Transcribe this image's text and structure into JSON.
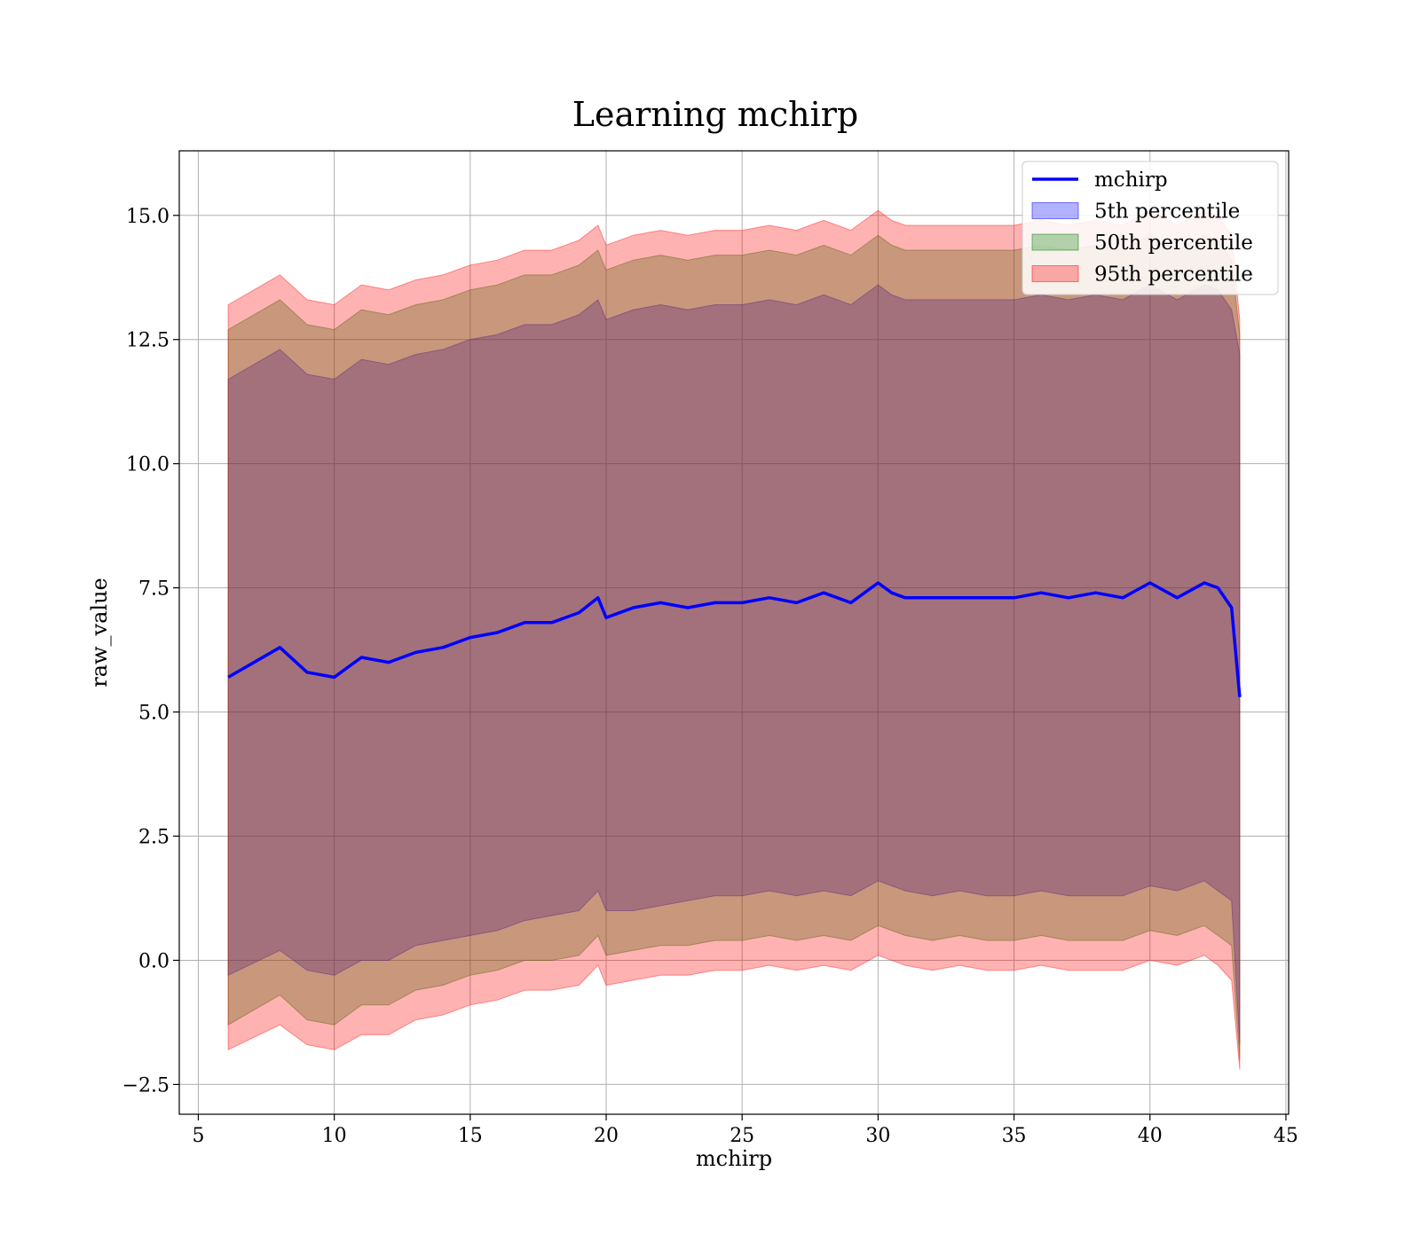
{
  "chart_data": {
    "type": "area",
    "title": "Learning mchirp",
    "xlabel": "mchirp",
    "ylabel": "raw_value",
    "xlim": [
      4.3,
      45.1
    ],
    "ylim": [
      -3.1,
      16.3
    ],
    "xticks": [
      5,
      10,
      15,
      20,
      25,
      30,
      35,
      40,
      45
    ],
    "xtick_labels": [
      "5",
      "10",
      "15",
      "20",
      "25",
      "30",
      "35",
      "40",
      "45"
    ],
    "yticks": [
      -2.5,
      0.0,
      2.5,
      5.0,
      7.5,
      10.0,
      12.5,
      15.0
    ],
    "ytick_labels": [
      "−2.5",
      "0.0",
      "2.5",
      "5.0",
      "7.5",
      "10.0",
      "12.5",
      "15.0"
    ],
    "grid": true,
    "legend_position": "top-right",
    "x": [
      6.1,
      8.0,
      9.0,
      10.0,
      11.0,
      12.0,
      13.0,
      14.0,
      15.0,
      16.0,
      17.0,
      18.0,
      19.0,
      19.7,
      20.0,
      21.0,
      22.0,
      23.0,
      24.0,
      25.0,
      26.0,
      27.0,
      28.0,
      29.0,
      30.0,
      30.5,
      31.0,
      32.0,
      33.0,
      34.0,
      35.0,
      36.0,
      37.0,
      38.0,
      39.0,
      40.0,
      41.0,
      42.0,
      42.5,
      43.0,
      43.3
    ],
    "series": [
      {
        "name": "mchirp",
        "style": "line",
        "color": "#0000ff",
        "values": [
          5.7,
          6.3,
          5.8,
          5.7,
          6.1,
          6.0,
          6.2,
          6.3,
          6.5,
          6.6,
          6.8,
          6.8,
          7.0,
          7.3,
          6.9,
          7.1,
          7.2,
          7.1,
          7.2,
          7.2,
          7.3,
          7.2,
          7.4,
          7.2,
          7.6,
          7.4,
          7.3,
          7.3,
          7.3,
          7.3,
          7.3,
          7.4,
          7.3,
          7.4,
          7.3,
          7.6,
          7.3,
          7.6,
          7.5,
          7.1,
          5.3
        ]
      },
      {
        "name": "5th percentile",
        "style": "band",
        "color": "#0000ff",
        "opacity": 0.3,
        "lower": [
          -0.3,
          0.2,
          -0.2,
          -0.3,
          0.0,
          0.0,
          0.3,
          0.4,
          0.5,
          0.6,
          0.8,
          0.9,
          1.0,
          1.4,
          1.0,
          1.0,
          1.1,
          1.2,
          1.3,
          1.3,
          1.4,
          1.3,
          1.4,
          1.3,
          1.6,
          1.5,
          1.4,
          1.3,
          1.4,
          1.3,
          1.3,
          1.4,
          1.3,
          1.3,
          1.3,
          1.5,
          1.4,
          1.6,
          1.4,
          1.2,
          -1.7
        ],
        "upper": [
          11.7,
          12.3,
          11.8,
          11.7,
          12.1,
          12.0,
          12.2,
          12.3,
          12.5,
          12.6,
          12.8,
          12.8,
          13.0,
          13.3,
          12.9,
          13.1,
          13.2,
          13.1,
          13.2,
          13.2,
          13.3,
          13.2,
          13.4,
          13.2,
          13.6,
          13.4,
          13.3,
          13.3,
          13.3,
          13.3,
          13.3,
          13.4,
          13.3,
          13.4,
          13.3,
          13.6,
          13.3,
          13.6,
          13.5,
          13.1,
          12.2
        ]
      },
      {
        "name": "50th percentile",
        "style": "band",
        "color": "#008000",
        "opacity": 0.3,
        "lower": [
          -1.3,
          -0.7,
          -1.2,
          -1.3,
          -0.9,
          -0.9,
          -0.6,
          -0.5,
          -0.3,
          -0.2,
          0.0,
          0.0,
          0.1,
          0.5,
          0.1,
          0.2,
          0.3,
          0.3,
          0.4,
          0.4,
          0.5,
          0.4,
          0.5,
          0.4,
          0.7,
          0.6,
          0.5,
          0.4,
          0.5,
          0.4,
          0.4,
          0.5,
          0.4,
          0.4,
          0.4,
          0.6,
          0.5,
          0.7,
          0.5,
          0.3,
          -2.0
        ],
        "upper": [
          12.7,
          13.3,
          12.8,
          12.7,
          13.1,
          13.0,
          13.2,
          13.3,
          13.5,
          13.6,
          13.8,
          13.8,
          14.0,
          14.3,
          13.9,
          14.1,
          14.2,
          14.1,
          14.2,
          14.2,
          14.3,
          14.2,
          14.4,
          14.2,
          14.6,
          14.4,
          14.3,
          14.3,
          14.3,
          14.3,
          14.3,
          14.4,
          14.3,
          14.4,
          14.3,
          14.6,
          14.3,
          14.6,
          14.5,
          14.1,
          12.6
        ]
      },
      {
        "name": "95th percentile",
        "style": "band",
        "color": "#ff0000",
        "opacity": 0.3,
        "lower": [
          -1.8,
          -1.3,
          -1.7,
          -1.8,
          -1.5,
          -1.5,
          -1.2,
          -1.1,
          -0.9,
          -0.8,
          -0.6,
          -0.6,
          -0.5,
          -0.1,
          -0.5,
          -0.4,
          -0.3,
          -0.3,
          -0.2,
          -0.2,
          -0.1,
          -0.2,
          -0.1,
          -0.2,
          0.1,
          0.0,
          -0.1,
          -0.2,
          -0.1,
          -0.2,
          -0.2,
          -0.1,
          -0.2,
          -0.2,
          -0.2,
          0.0,
          -0.1,
          0.1,
          -0.1,
          -0.4,
          -2.2
        ],
        "upper": [
          13.2,
          13.8,
          13.3,
          13.2,
          13.6,
          13.5,
          13.7,
          13.8,
          14.0,
          14.1,
          14.3,
          14.3,
          14.5,
          14.8,
          14.4,
          14.6,
          14.7,
          14.6,
          14.7,
          14.7,
          14.8,
          14.7,
          14.9,
          14.7,
          15.1,
          14.9,
          14.8,
          14.8,
          14.8,
          14.8,
          14.8,
          14.9,
          14.8,
          14.9,
          14.8,
          15.1,
          14.8,
          15.1,
          15.0,
          14.6,
          12.9
        ]
      }
    ]
  }
}
